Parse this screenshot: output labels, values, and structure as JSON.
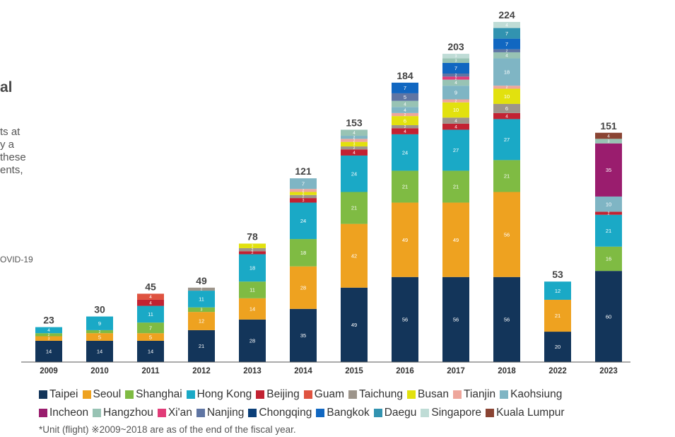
{
  "side_text": {
    "heading": "al",
    "lines": [
      "ts at",
      "y a",
      "these",
      "ents,"
    ],
    "covid": "OVID-19"
  },
  "footnote": "*Unit (flight) ※2009~2018 are as of the end of the fiscal year.",
  "colors": {
    "Taipei": "#13355a",
    "Seoul": "#eea220",
    "Shanghai": "#7fbb43",
    "Hong Kong": "#1aa9c6",
    "Beijing": "#c22232",
    "Guam": "#df5340",
    "Taichung": "#9d958b",
    "Busan": "#e2e10e",
    "Tianjin": "#eea69b",
    "Kaohsiung": "#7fb5c4",
    "Incheon": "#9a1d6e",
    "Hangzhou": "#98c3b4",
    "Xi'an": "#e13c78",
    "Nanjing": "#5f75a3",
    "Chongqing": "#0b3f78",
    "Bangkok": "#1167c1",
    "Daegu": "#3293b0",
    "Singapore": "#bfdcd6",
    "Kuala Lumpur": "#8a4433"
  },
  "legend": [
    [
      "Taipei",
      "Seoul",
      "Shanghai",
      "Hong Kong",
      "Beijing",
      "Guam",
      "Taichung",
      "Busan",
      "Tianjin",
      "Kaohsiung"
    ],
    [
      "Incheon",
      "Hangzhou",
      "Xi'an",
      "Nanjing",
      "Chongqing",
      "Bangkok",
      "Daegu",
      "Singapore",
      "Kuala Lumpur"
    ]
  ],
  "chart_data": {
    "type": "bar",
    "stacked": true,
    "categories": [
      "2009",
      "2010",
      "2011",
      "2012",
      "2013",
      "2014",
      "2015",
      "2016",
      "2017",
      "2018",
      "2022",
      "2023"
    ],
    "totals": [
      23,
      30,
      45,
      49,
      78,
      121,
      153,
      184,
      203,
      224,
      53,
      151
    ],
    "ylim": [
      0,
      224
    ],
    "grid": false,
    "legend_position": "bottom",
    "stacks": [
      [
        [
          "Taipei",
          14
        ],
        [
          "Seoul",
          3
        ],
        [
          "Shanghai",
          2
        ],
        [
          "Hong Kong",
          4
        ]
      ],
      [
        [
          "Taipei",
          14
        ],
        [
          "Seoul",
          5
        ],
        [
          "Shanghai",
          2
        ],
        [
          "Hong Kong",
          9
        ]
      ],
      [
        [
          "Taipei",
          14
        ],
        [
          "Seoul",
          5
        ],
        [
          "Shanghai",
          7
        ],
        [
          "Hong Kong",
          11
        ],
        [
          "Beijing",
          4
        ],
        [
          "Guam",
          4
        ]
      ],
      [
        [
          "Taipei",
          21
        ],
        [
          "Seoul",
          12
        ],
        [
          "Shanghai",
          3
        ],
        [
          "Hong Kong",
          11
        ],
        [
          "Taichung",
          2
        ]
      ],
      [
        [
          "Taipei",
          28
        ],
        [
          "Seoul",
          14
        ],
        [
          "Shanghai",
          11
        ],
        [
          "Hong Kong",
          18
        ],
        [
          "Beijing",
          2
        ],
        [
          "Taichung",
          2
        ],
        [
          "Busan",
          3
        ]
      ],
      [
        [
          "Taipei",
          35
        ],
        [
          "Seoul",
          28
        ],
        [
          "Shanghai",
          18
        ],
        [
          "Hong Kong",
          24
        ],
        [
          "Beijing",
          3
        ],
        [
          "Taichung",
          2
        ],
        [
          "Busan",
          2
        ],
        [
          "Tianjin",
          2
        ],
        [
          "Kaohsiung",
          7
        ]
      ],
      [
        [
          "Taipei",
          49
        ],
        [
          "Seoul",
          42
        ],
        [
          "Shanghai",
          21
        ],
        [
          "Hong Kong",
          24
        ],
        [
          "Beijing",
          4
        ],
        [
          "Taichung",
          2
        ],
        [
          "Busan",
          3
        ],
        [
          "Tianjin",
          2
        ],
        [
          "Kaohsiung",
          2
        ],
        [
          "Hangzhou",
          4
        ]
      ],
      [
        [
          "Taipei",
          56
        ],
        [
          "Seoul",
          49
        ],
        [
          "Shanghai",
          21
        ],
        [
          "Hong Kong",
          24
        ],
        [
          "Beijing",
          4
        ],
        [
          "Taichung",
          2
        ],
        [
          "Busan",
          6
        ],
        [
          "Tianjin",
          2
        ],
        [
          "Kaohsiung",
          4
        ],
        [
          "Hangzhou",
          4
        ],
        [
          "Nanjing",
          5
        ],
        [
          "Bangkok",
          7
        ]
      ],
      [
        [
          "Taipei",
          56
        ],
        [
          "Seoul",
          49
        ],
        [
          "Shanghai",
          21
        ],
        [
          "Hong Kong",
          27
        ],
        [
          "Beijing",
          4
        ],
        [
          "Taichung",
          4
        ],
        [
          "Busan",
          10
        ],
        [
          "Tianjin",
          2
        ],
        [
          "Kaohsiung",
          9
        ],
        [
          "Hangzhou",
          4
        ],
        [
          "Xi'an",
          2
        ],
        [
          "Nanjing",
          2
        ],
        [
          "Bangkok",
          7
        ],
        [
          "Hangzhou",
          3
        ],
        [
          "Singapore",
          3
        ]
      ],
      [
        [
          "Taipei",
          56
        ],
        [
          "Seoul",
          56
        ],
        [
          "Shanghai",
          21
        ],
        [
          "Hong Kong",
          27
        ],
        [
          "Beijing",
          4
        ],
        [
          "Taichung",
          6
        ],
        [
          "Busan",
          10
        ],
        [
          "Tianjin",
          2
        ],
        [
          "Kaohsiung",
          18
        ],
        [
          "Hangzhou",
          4
        ],
        [
          "Nanjing",
          2
        ],
        [
          "Bangkok",
          7
        ],
        [
          "Daegu",
          7
        ],
        [
          "Singapore",
          4
        ]
      ],
      [
        [
          "Taipei",
          20
        ],
        [
          "Seoul",
          21
        ],
        [
          "Hong Kong",
          12
        ]
      ],
      [
        [
          "Taipei",
          60
        ],
        [
          "Shanghai",
          16
        ],
        [
          "Hong Kong",
          21
        ],
        [
          "Beijing",
          2
        ],
        [
          "Kaohsiung",
          10
        ],
        [
          "Incheon",
          35
        ],
        [
          "Hangzhou",
          3
        ],
        [
          "Kuala Lumpur",
          4
        ]
      ]
    ]
  }
}
